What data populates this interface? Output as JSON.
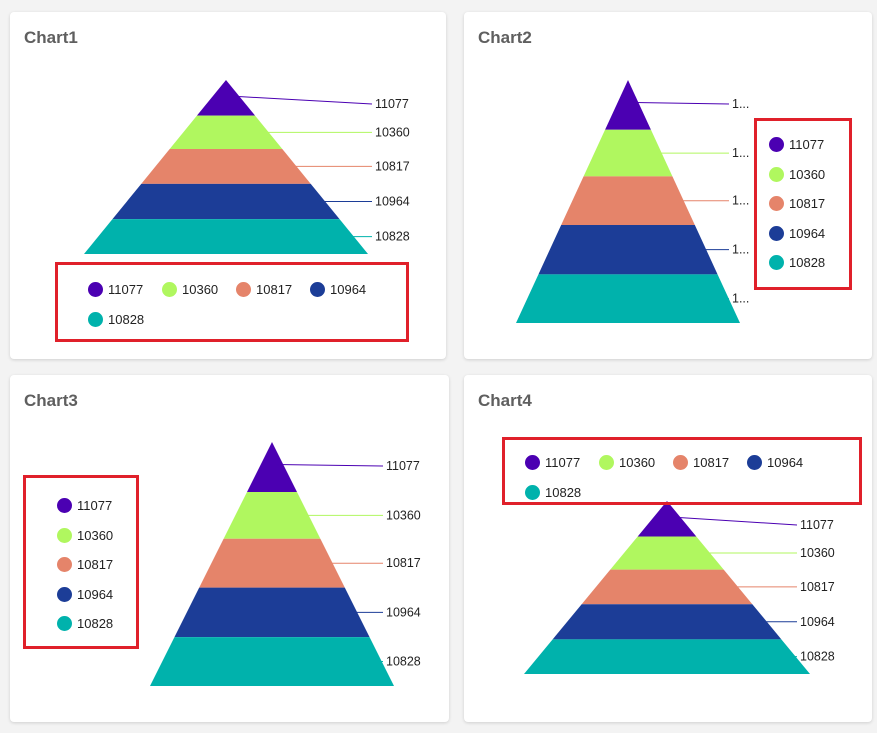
{
  "palette": [
    "#4b00b2",
    "#b0f75f",
    "#e5846a",
    "#1c3d97",
    "#00b2ac"
  ],
  "chart_data": [
    {
      "type": "pyramid",
      "title": "Chart1",
      "categories": [
        "11077",
        "10360",
        "10817",
        "10964",
        "10828"
      ],
      "values": [
        11077,
        10360,
        10817,
        10964,
        10828
      ],
      "data_labels": [
        "11077",
        "10360",
        "10817",
        "10964",
        "10828"
      ],
      "legend_position": "bottom"
    },
    {
      "type": "pyramid",
      "title": "Chart2",
      "categories": [
        "11077",
        "10360",
        "10817",
        "10964",
        "10828"
      ],
      "values": [
        11077,
        10360,
        10817,
        10964,
        10828
      ],
      "data_labels": [
        "1...",
        "1...",
        "1...",
        "1...",
        "1..."
      ],
      "legend_position": "right"
    },
    {
      "type": "pyramid",
      "title": "Chart3",
      "categories": [
        "11077",
        "10360",
        "10817",
        "10964",
        "10828"
      ],
      "values": [
        11077,
        10360,
        10817,
        10964,
        10828
      ],
      "data_labels": [
        "11077",
        "10360",
        "10817",
        "10964",
        "10828"
      ],
      "legend_position": "left"
    },
    {
      "type": "pyramid",
      "title": "Chart4",
      "categories": [
        "11077",
        "10360",
        "10817",
        "10964",
        "10828"
      ],
      "values": [
        11077,
        10360,
        10817,
        10964,
        10828
      ],
      "data_labels": [
        "11077",
        "10360",
        "10817",
        "10964",
        "10828"
      ],
      "legend_position": "top"
    }
  ]
}
